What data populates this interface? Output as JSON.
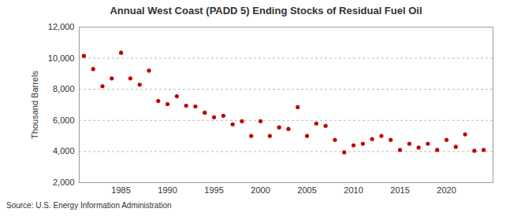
{
  "chart_data": {
    "type": "scatter",
    "title": "Annual West Coast (PADD 5) Ending Stocks of Residual Fuel Oil",
    "y_label": "Thousand Barrels",
    "source": "Source: U.S. Energy Information Administration",
    "x": [
      1981,
      1982,
      1983,
      1984,
      1985,
      1986,
      1987,
      1988,
      1989,
      1990,
      1991,
      1992,
      1993,
      1994,
      1995,
      1996,
      1997,
      1998,
      1999,
      2000,
      2001,
      2002,
      2003,
      2004,
      2005,
      2006,
      2007,
      2008,
      2009,
      2010,
      2011,
      2012,
      2013,
      2014,
      2015,
      2016,
      2017,
      2018,
      2019,
      2020,
      2021,
      2022,
      2023,
      2024
    ],
    "values": [
      10150,
      9300,
      8200,
      8700,
      10350,
      8700,
      8300,
      9200,
      7250,
      7050,
      7550,
      6950,
      6900,
      6500,
      6200,
      6300,
      5750,
      5950,
      5000,
      5950,
      5000,
      5550,
      5450,
      6850,
      5000,
      5800,
      5650,
      4750,
      3950,
      4400,
      4500,
      4800,
      5000,
      4750,
      4100,
      4500,
      4250,
      4500,
      4100,
      4750,
      4300,
      5100,
      4050,
      4100
    ],
    "color": "#c00000",
    "marker": "circle",
    "xlim": [
      1980.5,
      2025
    ],
    "xticks": [
      1985,
      1990,
      1995,
      2000,
      2005,
      2010,
      2015,
      2020
    ],
    "ylim": [
      2000,
      12000
    ],
    "yticks": [
      {
        "value": 2000,
        "label": "2,000"
      },
      {
        "value": 4000,
        "label": "4,000"
      },
      {
        "value": 6000,
        "label": "6,000"
      },
      {
        "value": 8000,
        "label": "8,000"
      },
      {
        "value": 10000,
        "label": "10,000"
      },
      {
        "value": 12000,
        "label": "12,000"
      }
    ],
    "grid": true
  }
}
